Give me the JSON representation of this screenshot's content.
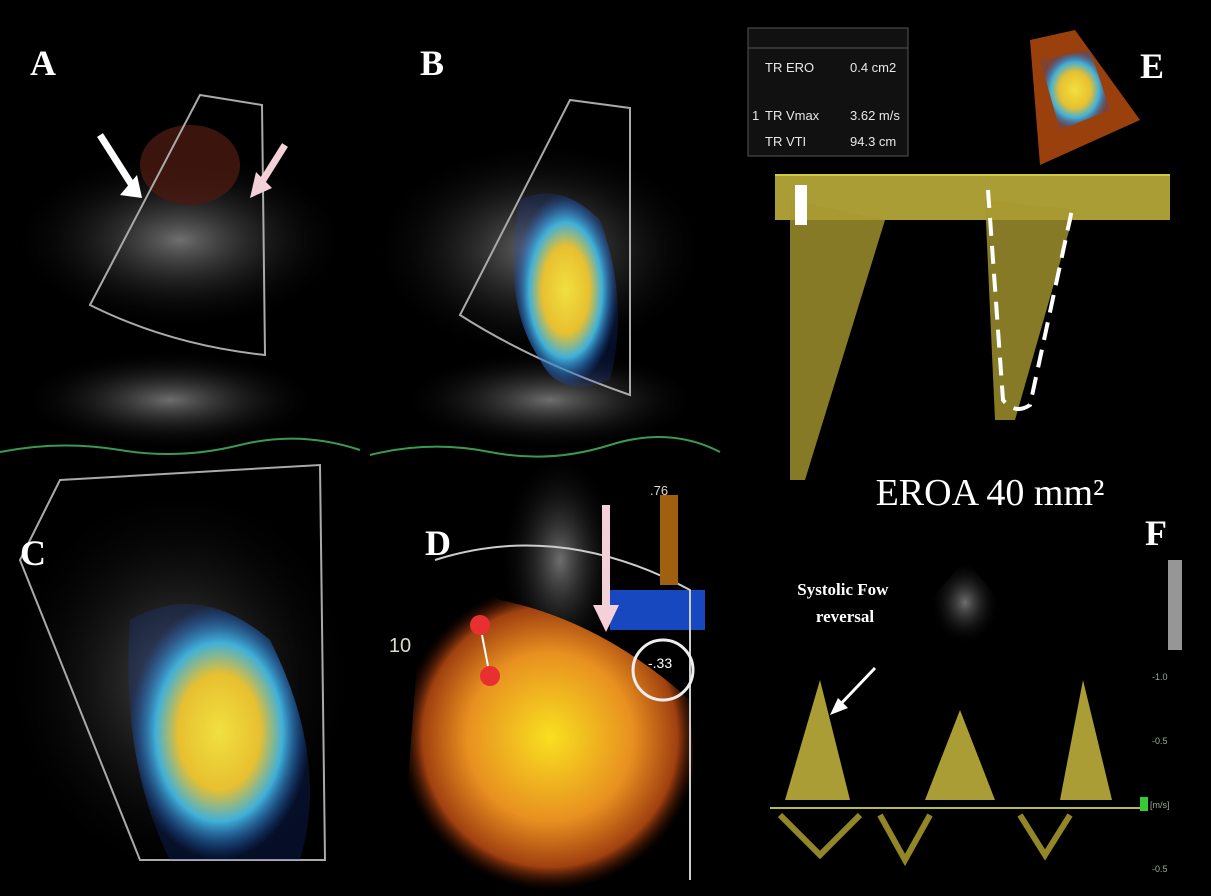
{
  "panels": [
    {
      "label": "A"
    },
    {
      "label": "B"
    },
    {
      "label": "C"
    },
    {
      "label": "D"
    },
    {
      "label": "E"
    },
    {
      "label": "F"
    }
  ],
  "panel_d": {
    "depth_label": "10",
    "scale_top": ".76",
    "scale_value": "-.33"
  },
  "panel_e": {
    "measurements": [
      {
        "name": "TR ERO",
        "value": "0.4 cm2"
      },
      {
        "marker": "1",
        "name": "TR Vmax",
        "value": "3.62 m/s"
      },
      {
        "name": "TR VTI",
        "value": "94.3 cm"
      }
    ],
    "eroa": "EROA 40 mm²"
  },
  "panel_f": {
    "annotation": [
      "Systolic Fow",
      "reversal"
    ],
    "velocity_ticks": [
      "-1.0",
      "-0.5",
      "[m/s]",
      "-0.5"
    ]
  }
}
